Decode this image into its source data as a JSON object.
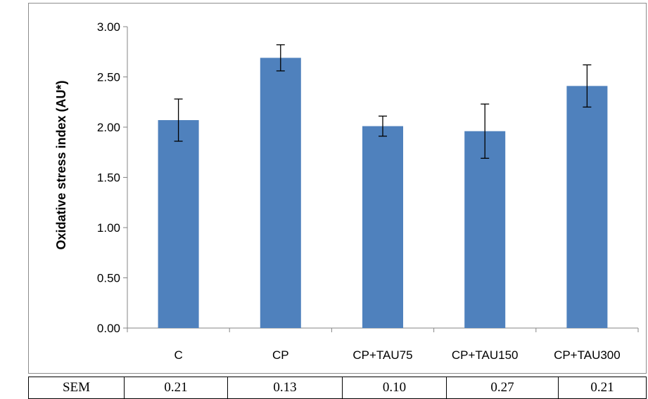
{
  "chart_data": {
    "type": "bar",
    "categories": [
      "C",
      "CP",
      "CP+TAU75",
      "CP+TAU150",
      "CP+TAU300"
    ],
    "values": [
      2.07,
      2.69,
      2.01,
      1.96,
      2.41
    ],
    "error": [
      0.21,
      0.13,
      0.1,
      0.27,
      0.21
    ],
    "ylabel": "Oxidative stress index (AU*)",
    "xlabel": "",
    "title": "",
    "ylim": [
      0,
      3
    ],
    "yticks": [
      "0.00",
      "0.50",
      "1.00",
      "1.50",
      "2.00",
      "2.50",
      "3.00"
    ],
    "bar_color": "#4f81bd",
    "grid": false,
    "legend": "none"
  },
  "table": {
    "row_label": "SEM",
    "values": [
      "0.21",
      "0.13",
      "0.10",
      "0.27",
      "0.21"
    ]
  }
}
